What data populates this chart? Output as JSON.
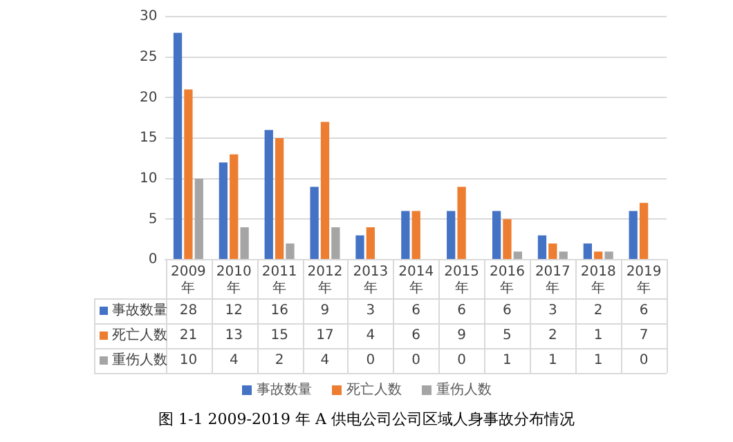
{
  "chart_data": {
    "type": "bar",
    "title": "图 1-1 2009-2019 年 A 供电公司公司区域人身事故分布情况",
    "categories": [
      "2009年",
      "2010年",
      "2011年",
      "2012年",
      "2013年",
      "2014年",
      "2015年",
      "2016年",
      "2017年",
      "2018年",
      "2019年"
    ],
    "series": [
      {
        "name": "事故数量",
        "color": "#4472c4",
        "values": [
          28,
          12,
          16,
          9,
          3,
          6,
          6,
          6,
          3,
          2,
          6
        ]
      },
      {
        "name": "死亡人数",
        "color": "#ed7d31",
        "values": [
          21,
          13,
          15,
          17,
          4,
          6,
          9,
          5,
          2,
          1,
          7
        ]
      },
      {
        "name": "重伤人数",
        "color": "#a5a5a5",
        "values": [
          10,
          4,
          2,
          4,
          0,
          0,
          0,
          1,
          1,
          1,
          0
        ]
      }
    ],
    "ylim": [
      0,
      30
    ],
    "yticks": [
      0,
      5,
      10,
      15,
      20,
      25,
      30
    ],
    "grid": "y",
    "legend": "bottom",
    "data_labels": true
  }
}
